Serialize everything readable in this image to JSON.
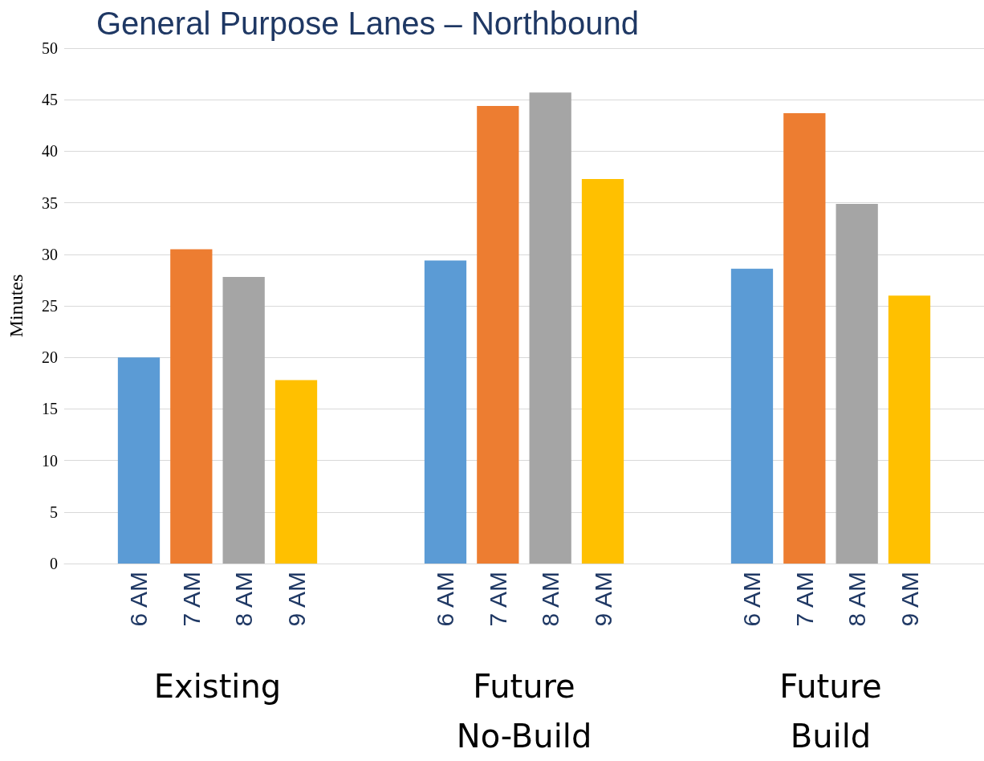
{
  "chart_data": {
    "type": "bar",
    "title": "General Purpose Lanes – Northbound",
    "ylabel": "Minutes",
    "categories": [
      "Existing",
      "Future\nNo-Build",
      "Future\nBuild"
    ],
    "series": [
      {
        "name": "6 AM",
        "color": "#5b9bd5",
        "values": [
          20,
          29.4,
          28.6
        ]
      },
      {
        "name": "7 AM",
        "color": "#ed7d31",
        "values": [
          30.5,
          44.4,
          43.7
        ]
      },
      {
        "name": "8 AM",
        "color": "#a5a5a5",
        "values": [
          27.8,
          45.7,
          34.9
        ]
      },
      {
        "name": "9 AM",
        "color": "#ffc000",
        "values": [
          17.8,
          37.3,
          26
        ]
      }
    ],
    "ylim": [
      0,
      50
    ],
    "yticks": [
      0,
      5,
      10,
      15,
      20,
      25,
      30,
      35,
      40,
      45,
      50
    ],
    "grid": "y",
    "legend": false
  }
}
